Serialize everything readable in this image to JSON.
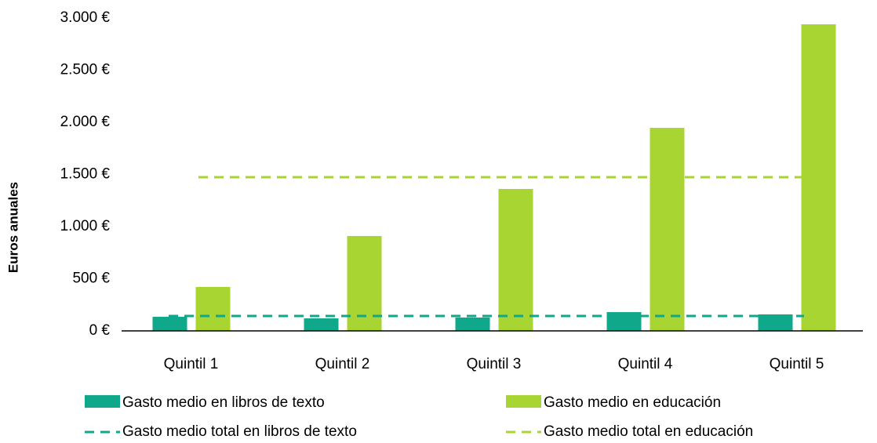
{
  "chart_data": {
    "type": "bar",
    "y_label": "Euros anuales",
    "categories": [
      "Quintil 1",
      "Quintil 2",
      "Quintil 3",
      "Quintil 4",
      "Quintil 5"
    ],
    "series": [
      {
        "name": "Gasto medio en libros de texto",
        "color": "#0fa88a",
        "values": [
          135,
          120,
          128,
          180,
          158
        ]
      },
      {
        "name": "Gasto medio en educación",
        "color": "#a8d531",
        "values": [
          421,
          910,
          1361,
          1947,
          2940
        ]
      }
    ],
    "reference_lines": [
      {
        "name": "Gasto medio total en libros de texto",
        "color": "#0fa88a",
        "value": 143
      },
      {
        "name": "Gasto medio total en educación",
        "color": "#a8d531",
        "value": 1474
      }
    ],
    "ylim": [
      0,
      3000
    ],
    "yticks": [
      {
        "value": 0,
        "label": "0 €"
      },
      {
        "value": 500,
        "label": "500 €"
      },
      {
        "value": 1000,
        "label": "1.000 €"
      },
      {
        "value": 1500,
        "label": "1.500 €"
      },
      {
        "value": 2000,
        "label": "2.000 €"
      },
      {
        "value": 2500,
        "label": "2.500 €"
      },
      {
        "value": 3000,
        "label": "3.000 €"
      }
    ],
    "grid": false
  }
}
